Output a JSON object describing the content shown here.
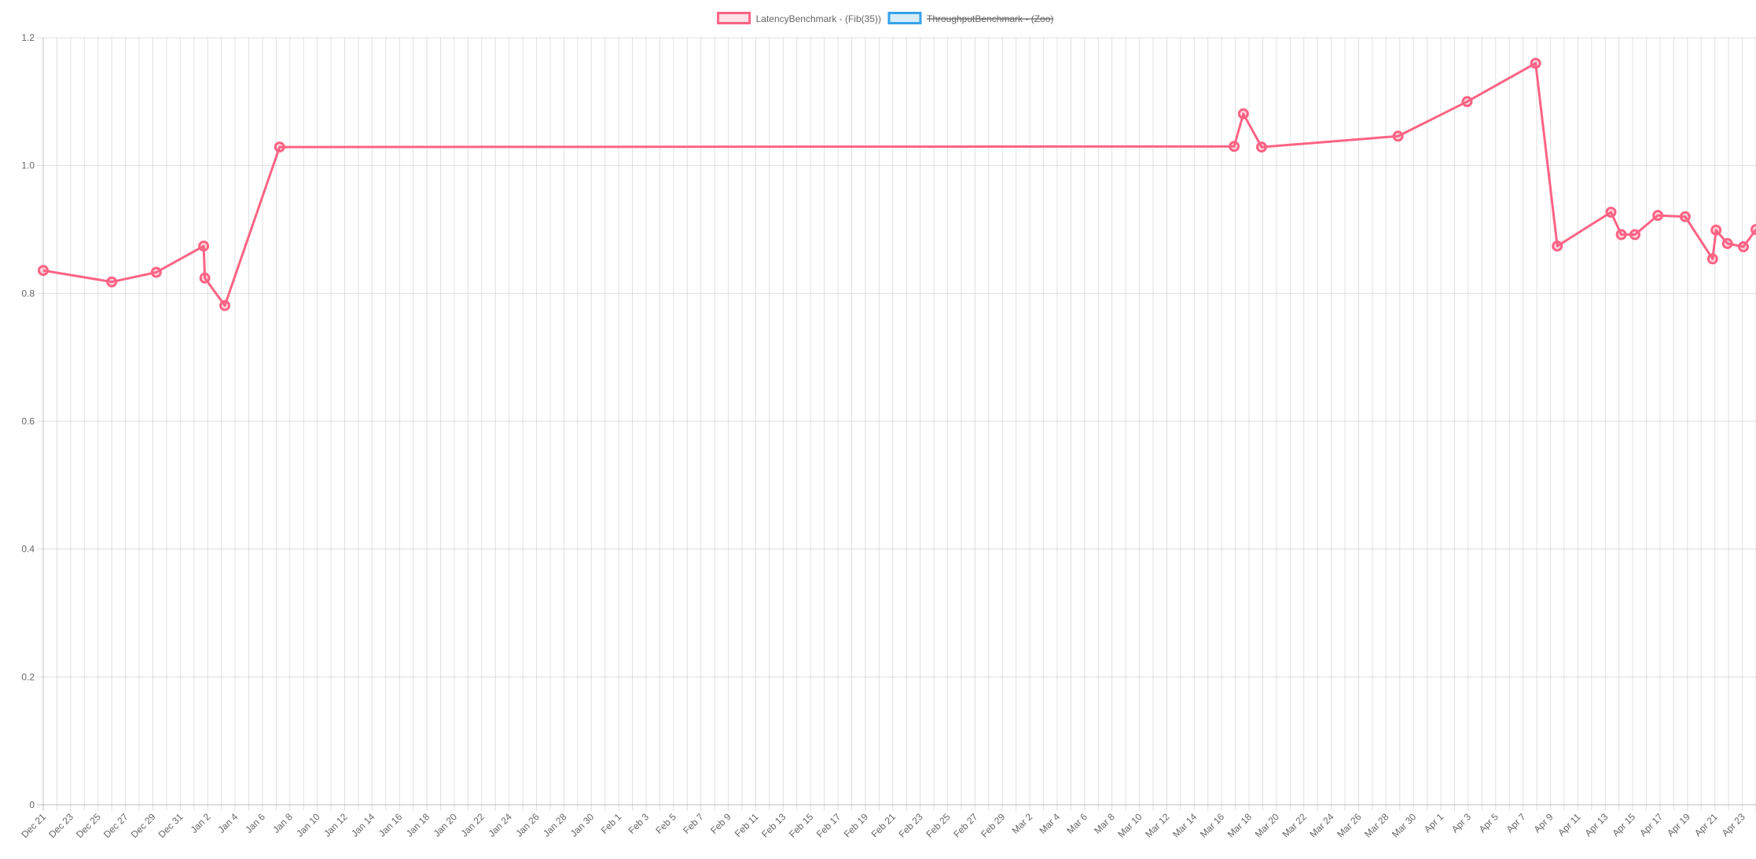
{
  "chart_data": {
    "type": "line",
    "title": "",
    "xlabel": "",
    "ylabel": "",
    "x_axis_type": "time",
    "x_range": [
      "2023-12-21",
      "2024-04-24"
    ],
    "ylim": [
      0,
      1.2
    ],
    "y_ticks": [
      0,
      0.2,
      0.4,
      0.6,
      0.8,
      1.0,
      1.2
    ],
    "y_tick_labels": [
      "0",
      "0.2",
      "0.4",
      "0.6",
      "0.8",
      "1.0",
      "1.2"
    ],
    "x_tick_labels": [
      "Dec 21",
      "Dec 23",
      "Dec 25",
      "Dec 27",
      "Dec 29",
      "Dec 31",
      "Jan 2",
      "Jan 4",
      "Jan 6",
      "Jan 8",
      "Jan 10",
      "Jan 12",
      "Jan 14",
      "Jan 16",
      "Jan 18",
      "Jan 20",
      "Jan 22",
      "Jan 24",
      "Jan 26",
      "Jan 28",
      "Jan 30",
      "Feb 1",
      "Feb 3",
      "Feb 5",
      "Feb 7",
      "Feb 9",
      "Feb 11",
      "Feb 13",
      "Feb 15",
      "Feb 17",
      "Feb 19",
      "Feb 21",
      "Feb 23",
      "Feb 25",
      "Feb 27",
      "Feb 29",
      "Mar 2",
      "Mar 4",
      "Mar 6",
      "Mar 8",
      "Mar 10",
      "Mar 12",
      "Mar 14",
      "Mar 16",
      "Mar 18",
      "Mar 20",
      "Mar 22",
      "Mar 24",
      "Mar 26",
      "Mar 28",
      "Mar 30",
      "Apr 1",
      "Apr 3",
      "Apr 5",
      "Apr 7",
      "Apr 9",
      "Apr 11",
      "Apr 13",
      "Apr 15",
      "Apr 17",
      "Apr 19",
      "Apr 21",
      "Apr 23"
    ],
    "grid": true,
    "legend_position": "top-center",
    "series": [
      {
        "name": "LatencyBenchmark - (Fib(35))",
        "color": "#ff6384",
        "hidden": false,
        "points": [
          {
            "x": "2023-12-21 00:00",
            "y": 0.836
          },
          {
            "x": "2023-12-26 00:00",
            "y": 0.818
          },
          {
            "x": "2023-12-29 06:00",
            "y": 0.833
          },
          {
            "x": "2024-01-01 17:00",
            "y": 0.874
          },
          {
            "x": "2024-01-01 19:00",
            "y": 0.824
          },
          {
            "x": "2024-01-03 06:00",
            "y": 0.781
          },
          {
            "x": "2024-01-07 06:00",
            "y": 1.029
          },
          {
            "x": "2024-03-16 22:00",
            "y": 1.03
          },
          {
            "x": "2024-03-17 14:00",
            "y": 1.081
          },
          {
            "x": "2024-03-18 22:00",
            "y": 1.029
          },
          {
            "x": "2024-03-28 21:00",
            "y": 1.046
          },
          {
            "x": "2024-04-02 22:00",
            "y": 1.1
          },
          {
            "x": "2024-04-07 22:00",
            "y": 1.16
          },
          {
            "x": "2024-04-09 12:00",
            "y": 0.874
          },
          {
            "x": "2024-04-13 10:00",
            "y": 0.927
          },
          {
            "x": "2024-04-14 04:00",
            "y": 0.892
          },
          {
            "x": "2024-04-15 04:00",
            "y": 0.892
          },
          {
            "x": "2024-04-16 20:00",
            "y": 0.922
          },
          {
            "x": "2024-04-18 20:00",
            "y": 0.92
          },
          {
            "x": "2024-04-20 20:00",
            "y": 0.854
          },
          {
            "x": "2024-04-21 02:00",
            "y": 0.899
          },
          {
            "x": "2024-04-21 22:00",
            "y": 0.878
          },
          {
            "x": "2024-04-23 02:00",
            "y": 0.873
          },
          {
            "x": "2024-04-24 00:00",
            "y": 0.9
          }
        ]
      },
      {
        "name": "ThroughputBenchmark - (Zoo)",
        "color": "#36a2eb",
        "hidden": true,
        "points": []
      }
    ]
  }
}
